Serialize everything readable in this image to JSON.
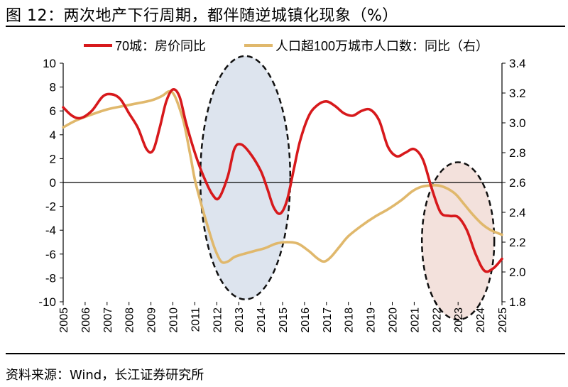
{
  "title": "图 12：两次地产下行周期，都伴随逆城镇化现象（%）",
  "source": "资料来源：Wind，长江证券研究所",
  "colors": {
    "series1": "#d7191c",
    "series2": "#e0b86c",
    "ellipse1_fill": "#dde4ee",
    "ellipse2_fill": "#f3e1dc"
  },
  "chart_data": {
    "type": "line",
    "x_ticks": [
      "2005",
      "2006",
      "2007",
      "2008",
      "2009",
      "2010",
      "2011",
      "2012",
      "2013",
      "2014",
      "2015",
      "2016",
      "2017",
      "2018",
      "2019",
      "2020",
      "2021",
      "2022",
      "2023",
      "2024",
      "2025"
    ],
    "y_left_ticks": [
      "10",
      "8",
      "6",
      "4",
      "2",
      "0",
      "-2",
      "-4",
      "-6",
      "-8",
      "-10"
    ],
    "y_right_ticks": [
      "3.4",
      "3.2",
      "3.0",
      "2.8",
      "2.6",
      "2.4",
      "2.2",
      "2.0",
      "1.8"
    ],
    "ylim_left": [
      -10,
      10
    ],
    "ylim_right": [
      1.8,
      3.4
    ],
    "xlim": [
      2005,
      2025
    ],
    "legend_position": "top",
    "series": [
      {
        "name": "70城：房价同比",
        "axis": "left",
        "points": [
          [
            2005.0,
            6.3
          ],
          [
            2005.4,
            5.6
          ],
          [
            2005.8,
            5.4
          ],
          [
            2006.3,
            6.0
          ],
          [
            2006.8,
            7.2
          ],
          [
            2007.2,
            7.4
          ],
          [
            2007.6,
            7.0
          ],
          [
            2008.0,
            5.8
          ],
          [
            2008.4,
            4.6
          ],
          [
            2008.8,
            2.8
          ],
          [
            2009.1,
            2.7
          ],
          [
            2009.4,
            4.6
          ],
          [
            2009.7,
            6.8
          ],
          [
            2010.0,
            7.8
          ],
          [
            2010.3,
            7.2
          ],
          [
            2010.6,
            5.0
          ],
          [
            2011.0,
            2.5
          ],
          [
            2011.4,
            0.5
          ],
          [
            2011.8,
            -1.0
          ],
          [
            2012.1,
            -1.3
          ],
          [
            2012.5,
            0.5
          ],
          [
            2012.8,
            2.8
          ],
          [
            2013.1,
            3.2
          ],
          [
            2013.5,
            2.5
          ],
          [
            2014.0,
            1.0
          ],
          [
            2014.3,
            -0.5
          ],
          [
            2014.6,
            -2.1
          ],
          [
            2014.9,
            -2.6
          ],
          [
            2015.2,
            -1.5
          ],
          [
            2015.5,
            1.0
          ],
          [
            2015.8,
            3.5
          ],
          [
            2016.2,
            5.6
          ],
          [
            2016.6,
            6.5
          ],
          [
            2017.0,
            6.8
          ],
          [
            2017.4,
            6.4
          ],
          [
            2017.8,
            5.8
          ],
          [
            2018.2,
            5.6
          ],
          [
            2018.6,
            6.0
          ],
          [
            2019.0,
            6.1
          ],
          [
            2019.4,
            5.2
          ],
          [
            2019.8,
            3.0
          ],
          [
            2020.2,
            2.2
          ],
          [
            2020.6,
            2.5
          ],
          [
            2021.0,
            2.8
          ],
          [
            2021.4,
            1.9
          ],
          [
            2021.8,
            -0.5
          ],
          [
            2022.2,
            -2.5
          ],
          [
            2022.6,
            -2.8
          ],
          [
            2023.0,
            -2.9
          ],
          [
            2023.4,
            -4.0
          ],
          [
            2023.8,
            -6.0
          ],
          [
            2024.2,
            -7.4
          ],
          [
            2024.6,
            -7.2
          ],
          [
            2025.0,
            -6.4
          ]
        ]
      },
      {
        "name": "人口超100万城市人口数：同比（右）",
        "axis": "right",
        "points": [
          [
            2005.0,
            2.97
          ],
          [
            2005.5,
            3.01
          ],
          [
            2006.0,
            3.04
          ],
          [
            2007.0,
            3.09
          ],
          [
            2008.0,
            3.12
          ],
          [
            2009.0,
            3.15
          ],
          [
            2009.5,
            3.18
          ],
          [
            2009.8,
            3.21
          ],
          [
            2010.0,
            3.2
          ],
          [
            2010.2,
            3.14
          ],
          [
            2010.5,
            3.0
          ],
          [
            2010.8,
            2.78
          ],
          [
            2011.0,
            2.62
          ],
          [
            2011.3,
            2.45
          ],
          [
            2011.6,
            2.3
          ],
          [
            2011.9,
            2.16
          ],
          [
            2012.2,
            2.07
          ],
          [
            2012.5,
            2.07
          ],
          [
            2012.8,
            2.1
          ],
          [
            2013.2,
            2.12
          ],
          [
            2013.7,
            2.14
          ],
          [
            2014.2,
            2.16
          ],
          [
            2014.7,
            2.19
          ],
          [
            2015.2,
            2.2
          ],
          [
            2015.7,
            2.19
          ],
          [
            2016.2,
            2.14
          ],
          [
            2016.6,
            2.09
          ],
          [
            2016.9,
            2.07
          ],
          [
            2017.2,
            2.1
          ],
          [
            2017.6,
            2.17
          ],
          [
            2018.0,
            2.24
          ],
          [
            2018.6,
            2.31
          ],
          [
            2019.2,
            2.37
          ],
          [
            2019.8,
            2.42
          ],
          [
            2020.4,
            2.48
          ],
          [
            2020.9,
            2.54
          ],
          [
            2021.3,
            2.57
          ],
          [
            2021.7,
            2.58
          ],
          [
            2022.1,
            2.58
          ],
          [
            2022.5,
            2.56
          ],
          [
            2022.9,
            2.52
          ],
          [
            2023.3,
            2.45
          ],
          [
            2023.7,
            2.38
          ],
          [
            2024.1,
            2.32
          ],
          [
            2024.5,
            2.28
          ],
          [
            2025.0,
            2.25
          ]
        ]
      }
    ],
    "highlights": [
      {
        "cx": 2013.3,
        "cy": 0.4,
        "rx": 2.05,
        "ry": 10.2,
        "fill_key": "ellipse1_fill"
      },
      {
        "cx": 2023.0,
        "cy": -4.9,
        "rx": 1.65,
        "ry": 6.6,
        "fill_key": "ellipse2_fill"
      }
    ]
  }
}
